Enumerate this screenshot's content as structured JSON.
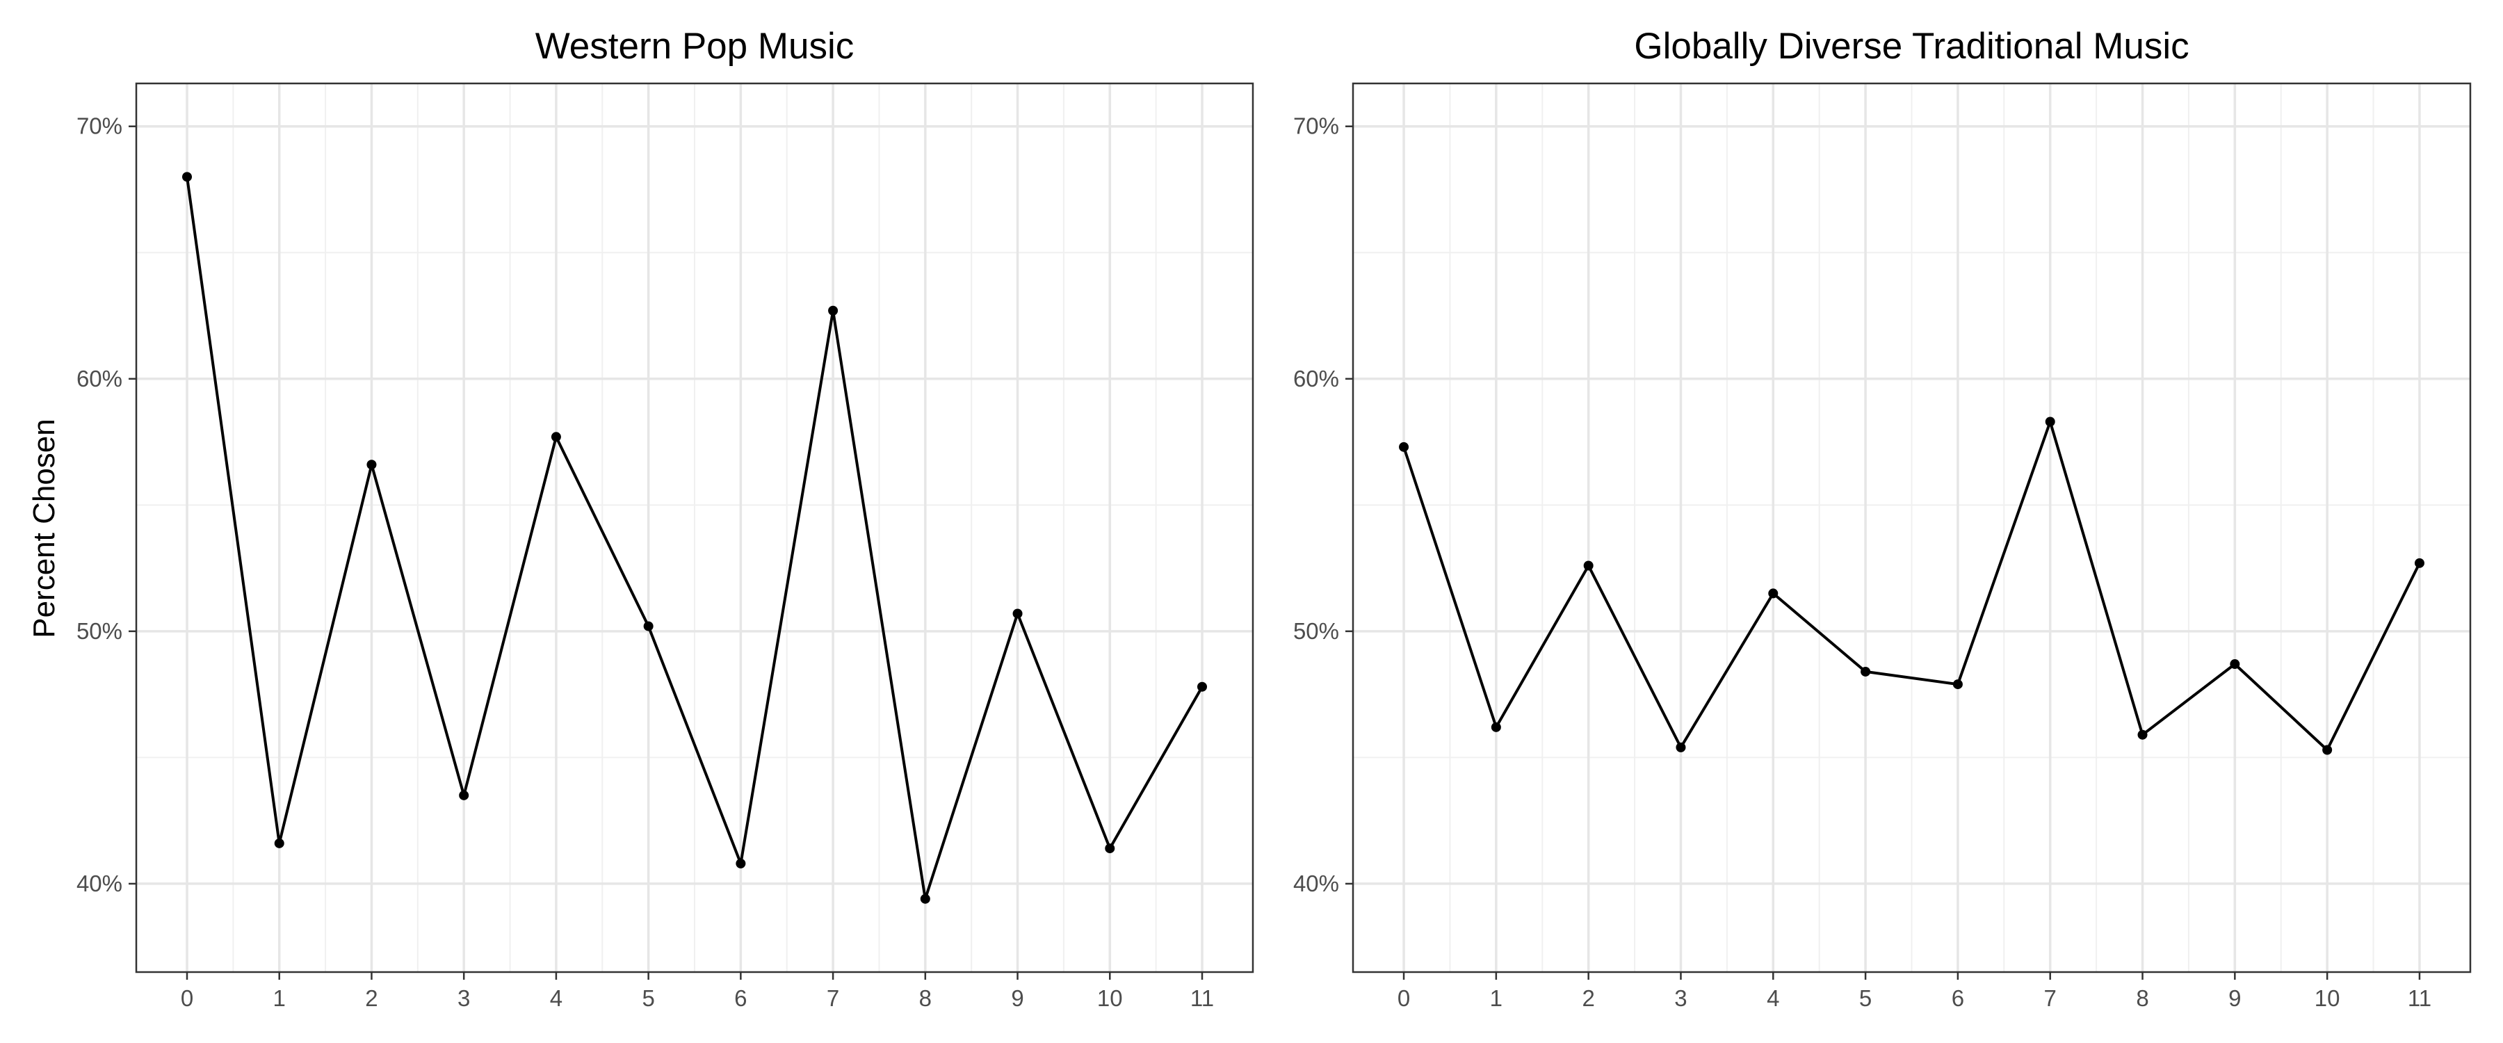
{
  "figure": {
    "ylabel": "Percent Chosen"
  },
  "chart_data": [
    {
      "type": "line",
      "title": "Western Pop Music",
      "xlabel": "",
      "ylabel": "Percent Chosen",
      "x": [
        0,
        1,
        2,
        3,
        4,
        5,
        6,
        7,
        8,
        9,
        10,
        11
      ],
      "x_tick_labels": [
        "0",
        "1",
        "2",
        "3",
        "4",
        "5",
        "6",
        "7",
        "8",
        "9",
        "10",
        "11"
      ],
      "values": [
        68.0,
        41.6,
        56.6,
        43.5,
        57.7,
        50.2,
        40.8,
        62.7,
        39.4,
        50.7,
        41.4,
        47.8
      ],
      "xlim": [
        -0.55,
        11.55
      ],
      "ylim": [
        36.5,
        71.7
      ],
      "y_ticks": [
        40,
        50,
        60,
        70
      ],
      "y_tick_labels": [
        "40%",
        "50%",
        "60%",
        "70%"
      ],
      "grid": true,
      "line_color": "#000000",
      "marker_color": "#000000"
    },
    {
      "type": "line",
      "title": "Globally Diverse Traditional Music",
      "xlabel": "",
      "ylabel": "",
      "x": [
        0,
        1,
        2,
        3,
        4,
        5,
        6,
        7,
        8,
        9,
        10,
        11
      ],
      "x_tick_labels": [
        "0",
        "1",
        "2",
        "3",
        "4",
        "5",
        "6",
        "7",
        "8",
        "9",
        "10",
        "11"
      ],
      "values": [
        57.3,
        46.2,
        52.6,
        45.4,
        51.5,
        48.4,
        47.9,
        58.3,
        45.9,
        48.7,
        45.3,
        52.7
      ],
      "xlim": [
        -0.55,
        11.55
      ],
      "ylim": [
        36.5,
        71.7
      ],
      "y_ticks": [
        40,
        50,
        60,
        70
      ],
      "y_tick_labels": [
        "40%",
        "50%",
        "60%",
        "70%"
      ],
      "grid": true,
      "line_color": "#000000",
      "marker_color": "#000000"
    }
  ]
}
